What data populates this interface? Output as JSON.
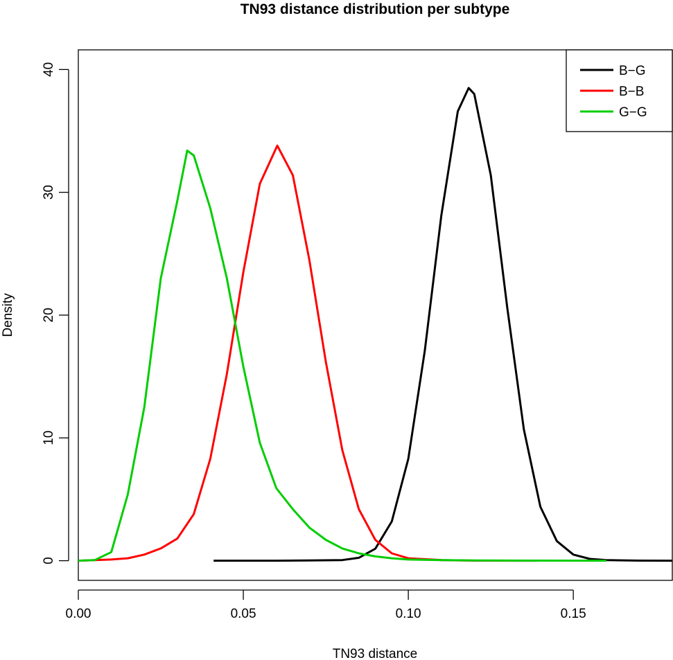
{
  "chart_data": {
    "type": "line",
    "title": "TN93 distance distribution per subtype",
    "xlabel": "TN93 distance",
    "ylabel": "Density",
    "xlim": [
      0,
      0.18
    ],
    "ylim": [
      -1.6,
      41.6
    ],
    "xticks": [
      0.0,
      0.05,
      0.1,
      0.15
    ],
    "xtick_labels": [
      "0.00",
      "0.05",
      "0.10",
      "0.15"
    ],
    "yticks": [
      0,
      10,
      20,
      30,
      40
    ],
    "ytick_labels": [
      "0",
      "10",
      "20",
      "30",
      "40"
    ],
    "grid": false,
    "legend_position": "top-right",
    "series": [
      {
        "name": "B−G",
        "color": "#000000",
        "x": [
          0.041,
          0.05,
          0.06,
          0.07,
          0.08,
          0.085,
          0.09,
          0.095,
          0.1,
          0.105,
          0.11,
          0.115,
          0.1183,
          0.12,
          0.125,
          0.13,
          0.135,
          0.14,
          0.145,
          0.15,
          0.155,
          0.16,
          0.17,
          0.18
        ],
        "y": [
          0,
          0,
          0,
          0.02,
          0.05,
          0.24,
          0.98,
          3.2,
          8.3,
          17.1,
          28.1,
          36.6,
          38.5,
          38.0,
          31.4,
          20.6,
          10.7,
          4.4,
          1.6,
          0.5,
          0.15,
          0.05,
          0.01,
          0
        ]
      },
      {
        "name": "B−B",
        "color": "#ff0000",
        "x": [
          0,
          0.01,
          0.015,
          0.02,
          0.025,
          0.03,
          0.035,
          0.04,
          0.045,
          0.05,
          0.055,
          0.0603,
          0.065,
          0.07,
          0.075,
          0.08,
          0.085,
          0.09,
          0.095,
          0.1,
          0.11,
          0.12,
          0.139
        ],
        "y": [
          0,
          0.1,
          0.2,
          0.5,
          1.0,
          1.8,
          3.8,
          8.3,
          15.2,
          23.5,
          30.7,
          33.8,
          31.4,
          24.5,
          16.2,
          9.0,
          4.2,
          1.7,
          0.6,
          0.2,
          0.05,
          0.01,
          0
        ]
      },
      {
        "name": "G−G",
        "color": "#00cd00",
        "x": [
          0,
          0.005,
          0.01,
          0.015,
          0.02,
          0.025,
          0.03,
          0.033,
          0.035,
          0.04,
          0.045,
          0.05,
          0.055,
          0.06,
          0.065,
          0.07,
          0.075,
          0.08,
          0.085,
          0.09,
          0.095,
          0.1,
          0.11,
          0.12,
          0.14,
          0.16
        ],
        "y": [
          0,
          0.05,
          0.7,
          5.4,
          12.5,
          23.0,
          29.3,
          33.4,
          33.0,
          28.7,
          23.0,
          15.8,
          9.6,
          5.9,
          4.2,
          2.7,
          1.7,
          1.0,
          0.6,
          0.35,
          0.2,
          0.1,
          0.05,
          0.02,
          0.01,
          0
        ]
      }
    ]
  }
}
